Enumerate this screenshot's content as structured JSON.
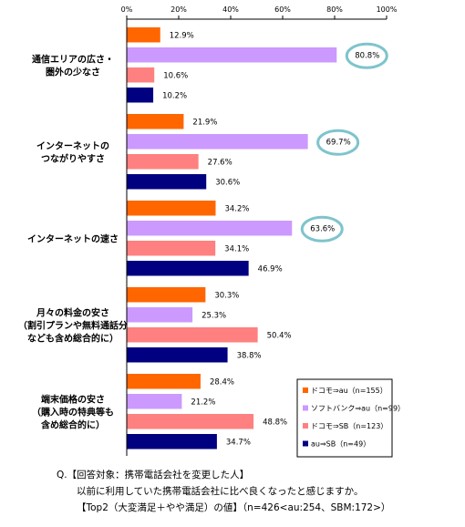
{
  "chart_data": {
    "type": "bar",
    "orientation": "horizontal",
    "xlim": [
      0,
      100
    ],
    "x_tick_labels": [
      "0%",
      "20%",
      "40%",
      "60%",
      "80%",
      "100%"
    ],
    "categories": [
      [
        "通信エリアの広さ・",
        "圏外の少なさ"
      ],
      [
        "インターネットの",
        "つながりやすさ"
      ],
      [
        "インターネットの速さ"
      ],
      [
        "月々の料金の安さ",
        "（割引プランや無料通話分",
        "なども含め総合的に）"
      ],
      [
        "端末価格の安さ",
        "（購入時の特典等も",
        "含め総合的に）"
      ]
    ],
    "series": [
      {
        "name": "ドコモ⇒au（n=155）",
        "color": "#ff6600",
        "values": [
          12.9,
          21.9,
          34.2,
          30.3,
          28.4
        ]
      },
      {
        "name": "ソフトバンク⇒au（n=99）",
        "color": "#cc99ff",
        "values": [
          80.8,
          69.7,
          63.6,
          25.3,
          21.2
        ]
      },
      {
        "name": "ドコモ⇒SB（n=123）",
        "color": "#ff8080",
        "values": [
          10.6,
          27.6,
          34.1,
          50.4,
          48.8
        ]
      },
      {
        "name": "au⇒SB（n=49）",
        "color": "#000080",
        "values": [
          10.2,
          30.6,
          46.9,
          38.8,
          34.7
        ]
      }
    ],
    "highlight_series": 1,
    "highlight_categories": [
      0,
      1,
      2
    ],
    "highlight_color": "#7fc4cc",
    "grid": false,
    "legend_position": "bottom-right"
  },
  "footnote": {
    "line1": "Q.【回答対象：携帯電話会社を変更した人】",
    "line2": "以前に利用していた携帯電話会社に比べ良くなったと感じますか。",
    "line3": "【Top2（大変満足＋やや満足）の値】（n=426<au:254、SBM:172>）"
  }
}
